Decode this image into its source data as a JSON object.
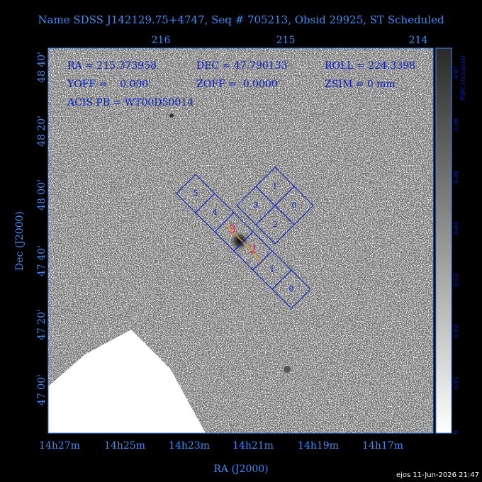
{
  "header": {
    "title": "Name SDSS J142129.75+4747, Seq # 705213, Obsid 29925, ST Scheduled"
  },
  "top_axis": {
    "labels": [
      "216",
      "215",
      "214"
    ]
  },
  "left_axis": {
    "title": "Dec (J2000)",
    "labels": [
      "48 40'",
      "48 20'",
      "48 00'",
      "47 40'",
      "47 20'",
      "47 00'"
    ]
  },
  "bottom_axis": {
    "title": "RA (J2000)",
    "labels": [
      "14h27m",
      "14h25m",
      "14h23m",
      "14h21m",
      "14h19m",
      "14h17m"
    ]
  },
  "colorbar": {
    "title": "PSPC cts/s/pixel",
    "labels": [
      "0.07",
      "0.06",
      "0.05",
      "0.04",
      "0.03",
      "0.02",
      "0.01",
      "0"
    ]
  },
  "info": {
    "lines": [
      [
        "RA = 215.373958",
        "DEC = 47.790133",
        "ROLL = 224.3398"
      ],
      [
        "YOFF =    0.000'",
        "ZOFF =  0.0000'",
        "ZSIM = 0 mm"
      ],
      [
        "ACIS PB = WT00D50014"
      ]
    ]
  },
  "chips": {
    "acis_s": [
      "5",
      "4",
      "1",
      "0"
    ],
    "acis_i": [
      "1",
      "3",
      "0",
      "2"
    ]
  },
  "source_labels": [
    "3",
    "2"
  ],
  "footer": "ejos 11-Jun-2026 21:47"
}
